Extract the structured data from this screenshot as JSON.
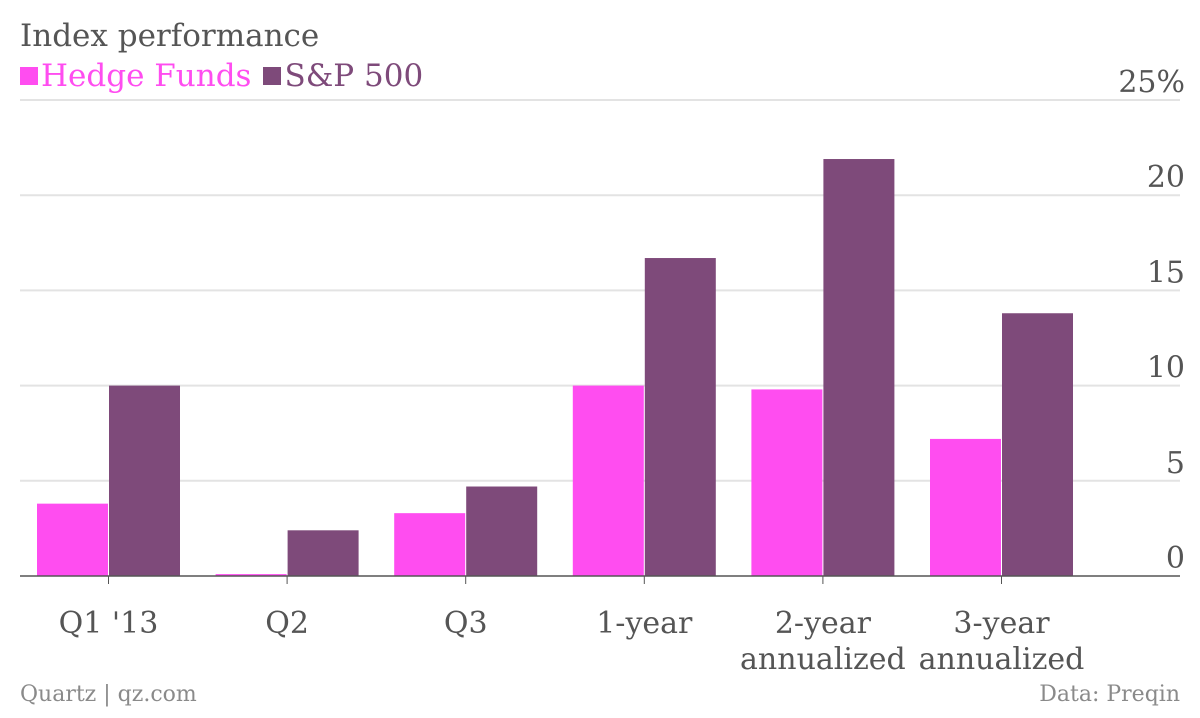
{
  "chart_data": {
    "type": "bar",
    "title": "Index performance",
    "categories": [
      [
        "Q1 '13"
      ],
      [
        "Q2"
      ],
      [
        "Q3"
      ],
      [
        "1-year"
      ],
      [
        "2-year",
        "annualized"
      ],
      [
        "3-year",
        "annualized"
      ]
    ],
    "series": [
      {
        "name": "Hedge Funds",
        "color": "#ff4df0",
        "values": [
          3.8,
          0.1,
          3.3,
          10.0,
          9.8,
          7.2
        ]
      },
      {
        "name": "S&P 500",
        "color": "#7e4a7a",
        "values": [
          10.0,
          2.4,
          4.7,
          16.7,
          21.9,
          13.8
        ]
      }
    ],
    "ylim": [
      0,
      25
    ],
    "yticks": [
      0,
      5,
      10,
      15,
      20,
      25
    ],
    "ytick_labels": [
      "0",
      "5",
      "10",
      "15",
      "20",
      "25%"
    ],
    "grid": true,
    "legend_position": "top-left"
  },
  "footer": {
    "source_left": "Quartz | qz.com",
    "source_right": "Data: Preqin"
  }
}
